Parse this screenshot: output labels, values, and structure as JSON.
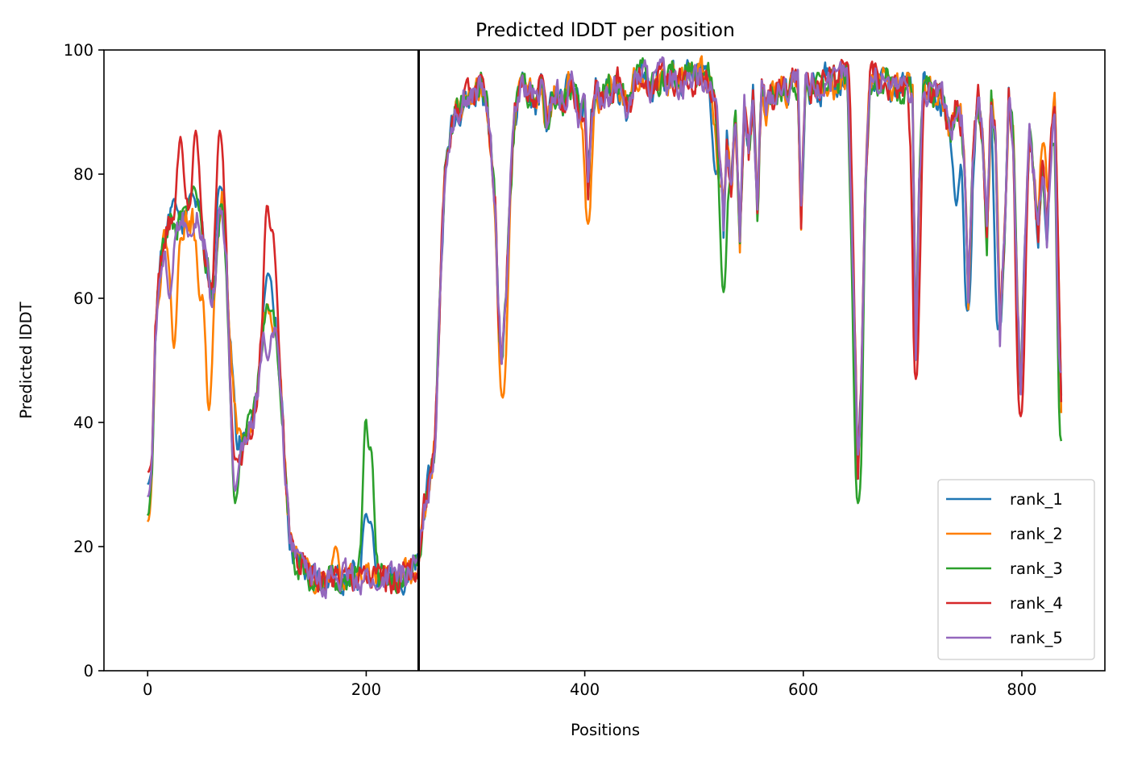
{
  "chart_data": {
    "type": "line",
    "title": "Predicted lDDT per position",
    "xlabel": "Positions",
    "ylabel": "Predicted lDDT",
    "xlim": [
      -40,
      876
    ],
    "ylim": [
      0,
      100
    ],
    "xticks": [
      0,
      200,
      400,
      600,
      800
    ],
    "yticks": [
      0,
      20,
      40,
      60,
      80,
      100
    ],
    "grid": false,
    "legend_position": "lower right",
    "vline": {
      "x": 248,
      "color": "#000000"
    },
    "base_points": [
      [
        0,
        31
      ],
      [
        4,
        37
      ],
      [
        7,
        55
      ],
      [
        10,
        62
      ],
      [
        14,
        68
      ],
      [
        18,
        72
      ],
      [
        22,
        72
      ],
      [
        26,
        71
      ],
      [
        30,
        72
      ],
      [
        34,
        73
      ],
      [
        38,
        72
      ],
      [
        42,
        73
      ],
      [
        46,
        74
      ],
      [
        50,
        71
      ],
      [
        54,
        66
      ],
      [
        58,
        60
      ],
      [
        62,
        64
      ],
      [
        66,
        74
      ],
      [
        68,
        76
      ],
      [
        72,
        66
      ],
      [
        76,
        52
      ],
      [
        79,
        44
      ],
      [
        82,
        36
      ],
      [
        86,
        36
      ],
      [
        90,
        38
      ],
      [
        94,
        39
      ],
      [
        98,
        42
      ],
      [
        102,
        48
      ],
      [
        106,
        55
      ],
      [
        110,
        60
      ],
      [
        114,
        58
      ],
      [
        118,
        54
      ],
      [
        122,
        45
      ],
      [
        126,
        32
      ],
      [
        130,
        22
      ],
      [
        135,
        18
      ],
      [
        140,
        17
      ],
      [
        145,
        16
      ],
      [
        150,
        15
      ],
      [
        160,
        15
      ],
      [
        170,
        15
      ],
      [
        180,
        15
      ],
      [
        190,
        15
      ],
      [
        200,
        15
      ],
      [
        210,
        15
      ],
      [
        220,
        15
      ],
      [
        230,
        15
      ],
      [
        240,
        16
      ],
      [
        248,
        17
      ],
      [
        252,
        25
      ],
      [
        256,
        29
      ],
      [
        260,
        33
      ],
      [
        263,
        37
      ],
      [
        266,
        52
      ],
      [
        269,
        68
      ],
      [
        272,
        80
      ],
      [
        276,
        86
      ],
      [
        280,
        89
      ],
      [
        285,
        91
      ],
      [
        290,
        92
      ],
      [
        295,
        92
      ],
      [
        300,
        93
      ],
      [
        305,
        94
      ],
      [
        310,
        91
      ],
      [
        314,
        84
      ],
      [
        318,
        75
      ],
      [
        321,
        58
      ],
      [
        324,
        48
      ],
      [
        328,
        62
      ],
      [
        332,
        78
      ],
      [
        336,
        89
      ],
      [
        340,
        93
      ],
      [
        345,
        94
      ],
      [
        350,
        93
      ],
      [
        355,
        91
      ],
      [
        360,
        94
      ],
      [
        365,
        88
      ],
      [
        370,
        92
      ],
      [
        375,
        93
      ],
      [
        380,
        91
      ],
      [
        385,
        94
      ],
      [
        390,
        94
      ],
      [
        395,
        89
      ],
      [
        400,
        91
      ],
      [
        403,
        77
      ],
      [
        406,
        89
      ],
      [
        410,
        94
      ],
      [
        415,
        92
      ],
      [
        420,
        94
      ],
      [
        425,
        93
      ],
      [
        430,
        95
      ],
      [
        435,
        92
      ],
      [
        440,
        90
      ],
      [
        445,
        94
      ],
      [
        450,
        96
      ],
      [
        455,
        96
      ],
      [
        460,
        94
      ],
      [
        465,
        95
      ],
      [
        470,
        96
      ],
      [
        475,
        95
      ],
      [
        480,
        96
      ],
      [
        485,
        95
      ],
      [
        490,
        95
      ],
      [
        495,
        96
      ],
      [
        500,
        95
      ],
      [
        505,
        96
      ],
      [
        510,
        96
      ],
      [
        515,
        95
      ],
      [
        520,
        90
      ],
      [
        524,
        82
      ],
      [
        527,
        70
      ],
      [
        530,
        85
      ],
      [
        534,
        78
      ],
      [
        538,
        89
      ],
      [
        542,
        70
      ],
      [
        546,
        91
      ],
      [
        550,
        83
      ],
      [
        554,
        92
      ],
      [
        558,
        74
      ],
      [
        562,
        94
      ],
      [
        566,
        91
      ],
      [
        570,
        93
      ],
      [
        575,
        93
      ],
      [
        580,
        94
      ],
      [
        585,
        93
      ],
      [
        590,
        95
      ],
      [
        595,
        95
      ],
      [
        598,
        72
      ],
      [
        602,
        94
      ],
      [
        606,
        93
      ],
      [
        610,
        95
      ],
      [
        615,
        93
      ],
      [
        620,
        95
      ],
      [
        625,
        96
      ],
      [
        630,
        94
      ],
      [
        635,
        96
      ],
      [
        640,
        96
      ],
      [
        643,
        80
      ],
      [
        647,
        55
      ],
      [
        650,
        33
      ],
      [
        653,
        45
      ],
      [
        657,
        80
      ],
      [
        661,
        95
      ],
      [
        665,
        96
      ],
      [
        670,
        94
      ],
      [
        675,
        96
      ],
      [
        680,
        94
      ],
      [
        685,
        94
      ],
      [
        690,
        94
      ],
      [
        695,
        95
      ],
      [
        700,
        93
      ],
      [
        703,
        50
      ],
      [
        706,
        78
      ],
      [
        710,
        94
      ],
      [
        715,
        93
      ],
      [
        720,
        92
      ],
      [
        725,
        93
      ],
      [
        730,
        90
      ],
      [
        735,
        86
      ],
      [
        740,
        92
      ],
      [
        745,
        88
      ],
      [
        748,
        80
      ],
      [
        751,
        60
      ],
      [
        755,
        82
      ],
      [
        760,
        92
      ],
      [
        764,
        86
      ],
      [
        768,
        70
      ],
      [
        772,
        92
      ],
      [
        776,
        86
      ],
      [
        780,
        55
      ],
      [
        784,
        70
      ],
      [
        788,
        92
      ],
      [
        792,
        86
      ],
      [
        796,
        60
      ],
      [
        799,
        45
      ],
      [
        803,
        70
      ],
      [
        807,
        87
      ],
      [
        811,
        80
      ],
      [
        815,
        70
      ],
      [
        819,
        82
      ],
      [
        823,
        70
      ],
      [
        827,
        85
      ],
      [
        830,
        92
      ],
      [
        833,
        70
      ],
      [
        836,
        42
      ]
    ],
    "series": [
      {
        "name": "rank_1",
        "color": "#1f77b4",
        "seed": 11,
        "overrides": [
          [
            0,
            30
          ],
          [
            24,
            76
          ],
          [
            40,
            77
          ],
          [
            66,
            78
          ],
          [
            110,
            64
          ],
          [
            200,
            26
          ],
          [
            204,
            24
          ],
          [
            520,
            80
          ],
          [
            740,
            75
          ],
          [
            750,
            58
          ],
          [
            778,
            55
          ]
        ]
      },
      {
        "name": "rank_2",
        "color": "#ff7f00",
        "seed": 22,
        "overrides": [
          [
            0,
            24
          ],
          [
            24,
            52
          ],
          [
            48,
            60
          ],
          [
            56,
            42
          ],
          [
            172,
            20
          ],
          [
            325,
            44
          ],
          [
            403,
            72
          ],
          [
            524,
            78
          ],
          [
            820,
            85
          ]
        ]
      },
      {
        "name": "rank_3",
        "color": "#2ca02c",
        "seed": 33,
        "overrides": [
          [
            0,
            25
          ],
          [
            42,
            78
          ],
          [
            80,
            27
          ],
          [
            112,
            58
          ],
          [
            158,
            13
          ],
          [
            200,
            43
          ],
          [
            204,
            36
          ],
          [
            527,
            61
          ],
          [
            650,
            27
          ],
          [
            836,
            37
          ]
        ]
      },
      {
        "name": "rank_4",
        "color": "#d62728",
        "seed": 44,
        "overrides": [
          [
            0,
            32
          ],
          [
            30,
            86
          ],
          [
            44,
            87
          ],
          [
            66,
            87
          ],
          [
            80,
            34
          ],
          [
            110,
            77
          ],
          [
            114,
            71
          ],
          [
            305,
            96
          ],
          [
            360,
            96
          ],
          [
            640,
            98
          ],
          [
            703,
            47
          ],
          [
            799,
            41
          ]
        ]
      },
      {
        "name": "rank_5",
        "color": "#9467bd",
        "seed": 55,
        "overrides": [
          [
            0,
            28
          ],
          [
            20,
            60
          ],
          [
            40,
            70
          ],
          [
            80,
            29
          ],
          [
            110,
            50
          ],
          [
            140,
            19
          ],
          [
            210,
            13
          ],
          [
            836,
            48
          ]
        ]
      }
    ]
  }
}
